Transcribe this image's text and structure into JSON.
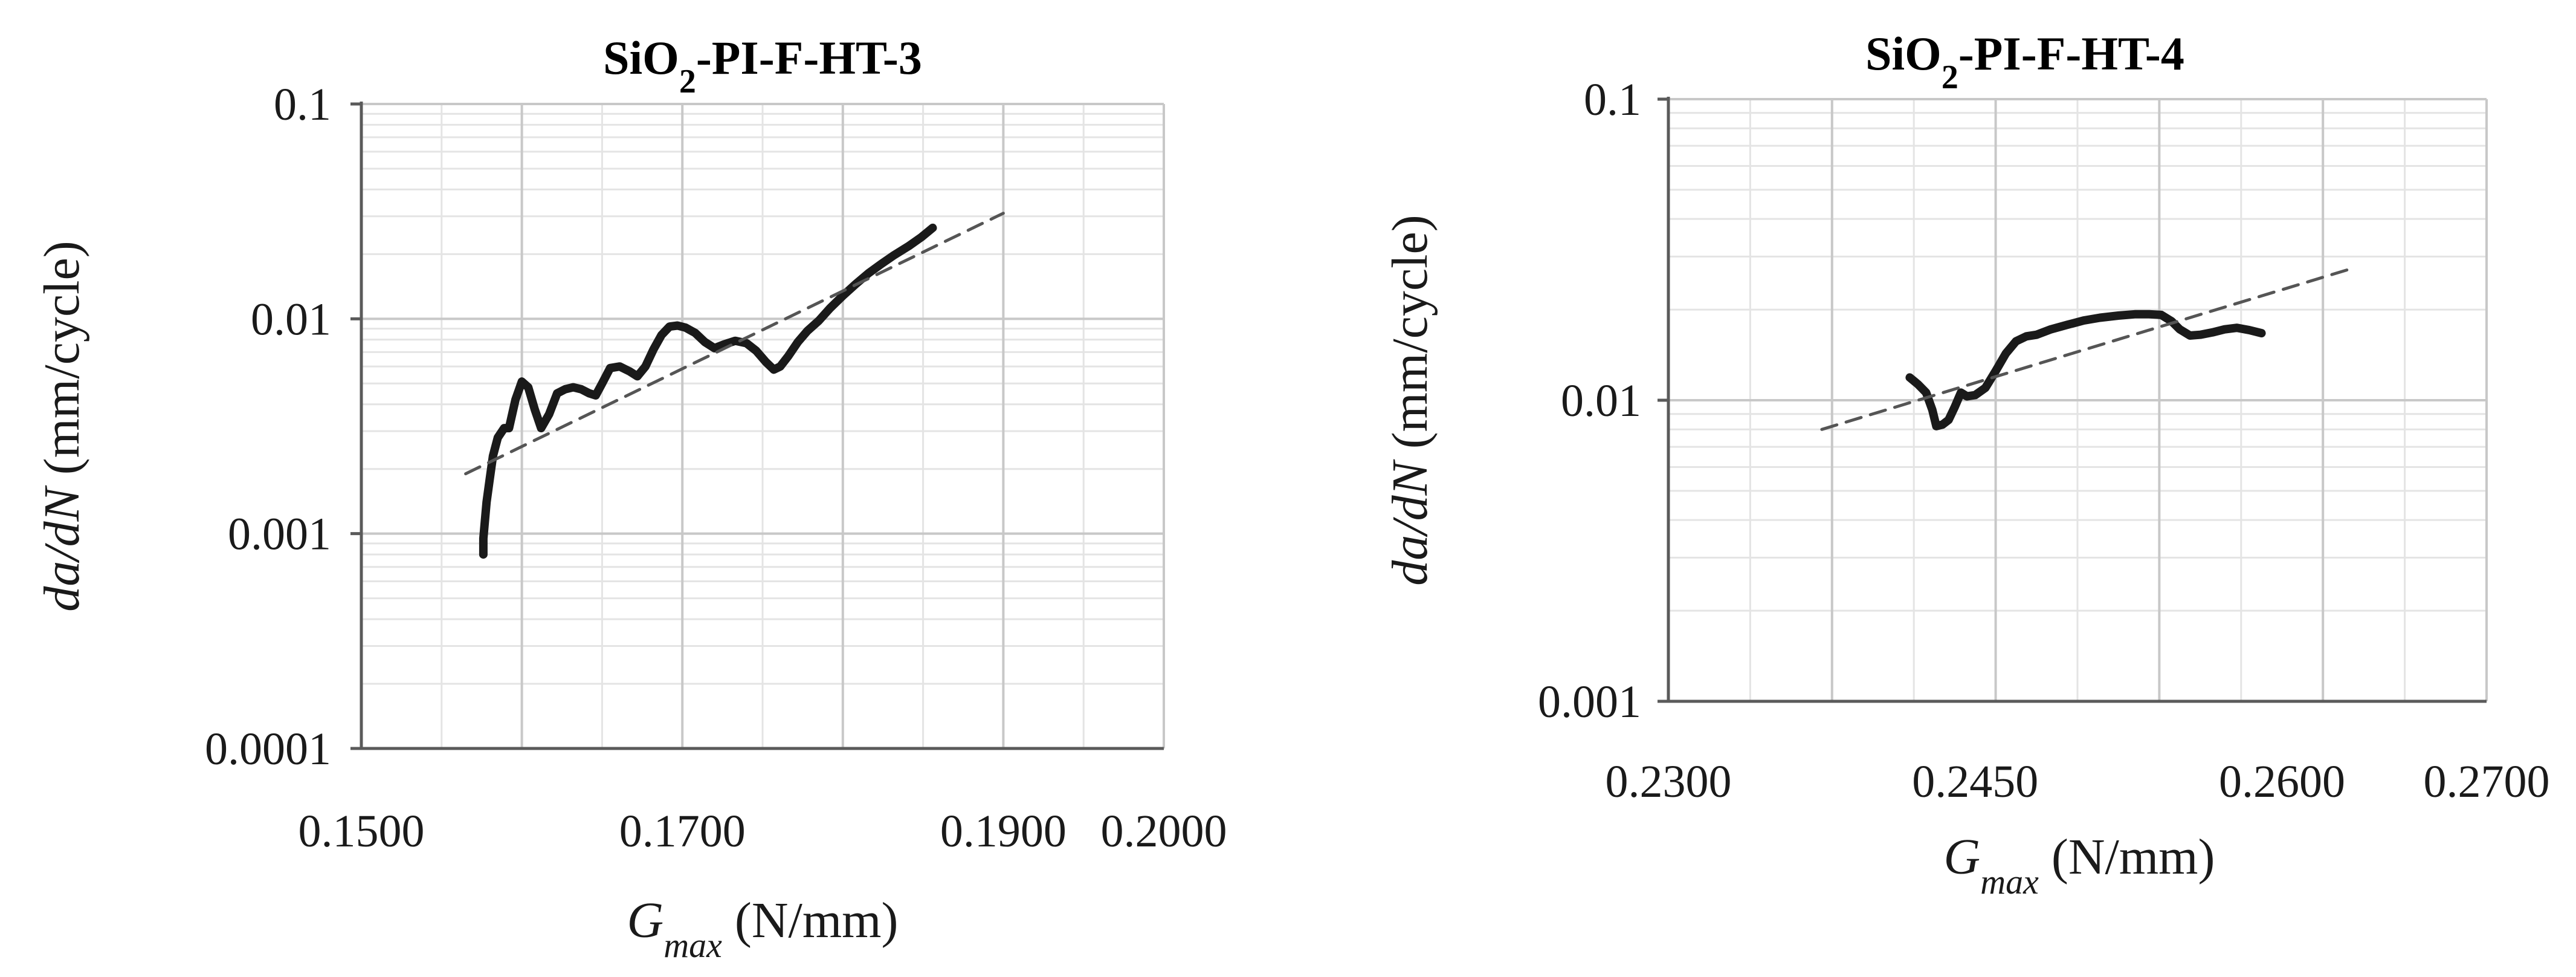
{
  "chart_data": [
    {
      "type": "line",
      "title": "SiO2-PI-F-HT-3",
      "title_parts": {
        "prefix": "SiO",
        "subscript": "2",
        "suffix": "-PI-F-HT-3"
      },
      "xlabel": {
        "symbol": "G",
        "subscript": "max",
        "unit": "(N/mm)"
      },
      "ylabel": {
        "symbol": "da/dN",
        "unit": "(mm/cycle)"
      },
      "yscale": "log",
      "xlim": [
        0.15,
        0.2
      ],
      "ylim": [
        0.0001,
        0.1
      ],
      "x_tick_labels": [
        "0.1500",
        "0.1700",
        "0.1900",
        "0.2000"
      ],
      "x_tick_values": [
        0.15,
        0.17,
        0.19,
        0.2
      ],
      "y_tick_labels": [
        "0.0001",
        "0.001",
        "0.01",
        "0.1"
      ],
      "y_tick_values": [
        0.0001,
        0.001,
        0.01,
        0.1
      ],
      "grid": true,
      "series": [
        {
          "style": "solid",
          "color": "#1a1a1a",
          "x": [
            0.1576,
            0.1576,
            0.1577,
            0.1578,
            0.158,
            0.1582,
            0.1585,
            0.1589,
            0.1592,
            0.1596,
            0.16,
            0.1604,
            0.1608,
            0.1612,
            0.1617,
            0.1622,
            0.1627,
            0.1632,
            0.1637,
            0.1642,
            0.1646,
            0.165,
            0.1655,
            0.1661,
            0.1667,
            0.1672,
            0.1677,
            0.1682,
            0.1687,
            0.1692,
            0.1697,
            0.1702,
            0.1708,
            0.1714,
            0.172,
            0.1726,
            0.1733,
            0.174,
            0.1746,
            0.1752,
            0.1757,
            0.1761,
            0.1766,
            0.1772,
            0.1778,
            0.1785,
            0.1792,
            0.18,
            0.1808,
            0.1816,
            0.1824,
            0.1832,
            0.1841,
            0.1849,
            0.1856
          ],
          "y": [
            0.0008,
            0.00095,
            0.00115,
            0.0014,
            0.0018,
            0.0023,
            0.0028,
            0.0031,
            0.0031,
            0.0042,
            0.0051,
            0.0048,
            0.0038,
            0.0031,
            0.0036,
            0.0045,
            0.0047,
            0.0048,
            0.0047,
            0.0045,
            0.0044,
            0.005,
            0.0059,
            0.006,
            0.0057,
            0.0054,
            0.006,
            0.0072,
            0.0084,
            0.0092,
            0.0093,
            0.0091,
            0.0086,
            0.0078,
            0.0073,
            0.0076,
            0.0079,
            0.0077,
            0.0071,
            0.0063,
            0.0058,
            0.006,
            0.0067,
            0.0078,
            0.0088,
            0.0098,
            0.0112,
            0.0128,
            0.0145,
            0.0163,
            0.018,
            0.0198,
            0.0218,
            0.024,
            0.0265
          ]
        },
        {
          "style": "dashed",
          "color": "#555555",
          "x": [
            0.1565,
            0.19
          ],
          "y": [
            0.0019,
            0.031
          ]
        }
      ]
    },
    {
      "type": "line",
      "title": "SiO2-PI-F-HT-4",
      "title_parts": {
        "prefix": "SiO",
        "subscript": "2",
        "suffix": "-PI-F-HT-4"
      },
      "xlabel": {
        "symbol": "G",
        "subscript": "max",
        "unit": "(N/mm)"
      },
      "ylabel": {
        "symbol": "da/dN",
        "unit": "(mm/cycle)"
      },
      "yscale": "log",
      "xlim": [
        0.23,
        0.27
      ],
      "ylim": [
        0.001,
        0.1
      ],
      "x_tick_labels": [
        "0.2300",
        "0.2450",
        "0.2600",
        "0.2700"
      ],
      "x_tick_values": [
        0.23,
        0.245,
        0.26,
        0.27
      ],
      "y_tick_labels": [
        "0.001",
        "0.01",
        "0.1"
      ],
      "y_tick_values": [
        0.001,
        0.01,
        0.1
      ],
      "grid": true,
      "series": [
        {
          "style": "solid",
          "color": "#1a1a1a",
          "x": [
            0.2418,
            0.2422,
            0.2426,
            0.2429,
            0.2431,
            0.2434,
            0.2437,
            0.244,
            0.2443,
            0.2446,
            0.245,
            0.2455,
            0.246,
            0.2465,
            0.247,
            0.2475,
            0.248,
            0.2487,
            0.2495,
            0.2503,
            0.2511,
            0.252,
            0.2528,
            0.2535,
            0.2541,
            0.2546,
            0.255,
            0.2555,
            0.256,
            0.2566,
            0.2572,
            0.2578,
            0.2584,
            0.259
          ],
          "y": [
            0.0119,
            0.0113,
            0.0106,
            0.0093,
            0.0082,
            0.0083,
            0.0086,
            0.0095,
            0.0106,
            0.0103,
            0.0104,
            0.011,
            0.0125,
            0.0143,
            0.0157,
            0.0163,
            0.0165,
            0.0172,
            0.0178,
            0.0184,
            0.0188,
            0.0191,
            0.0193,
            0.0193,
            0.0192,
            0.0183,
            0.0172,
            0.0164,
            0.0165,
            0.0168,
            0.0172,
            0.0174,
            0.0171,
            0.0167
          ]
        },
        {
          "style": "dashed",
          "color": "#555555",
          "x": [
            0.2375,
            0.2635
          ],
          "y": [
            0.008,
            0.0275
          ]
        }
      ]
    }
  ]
}
